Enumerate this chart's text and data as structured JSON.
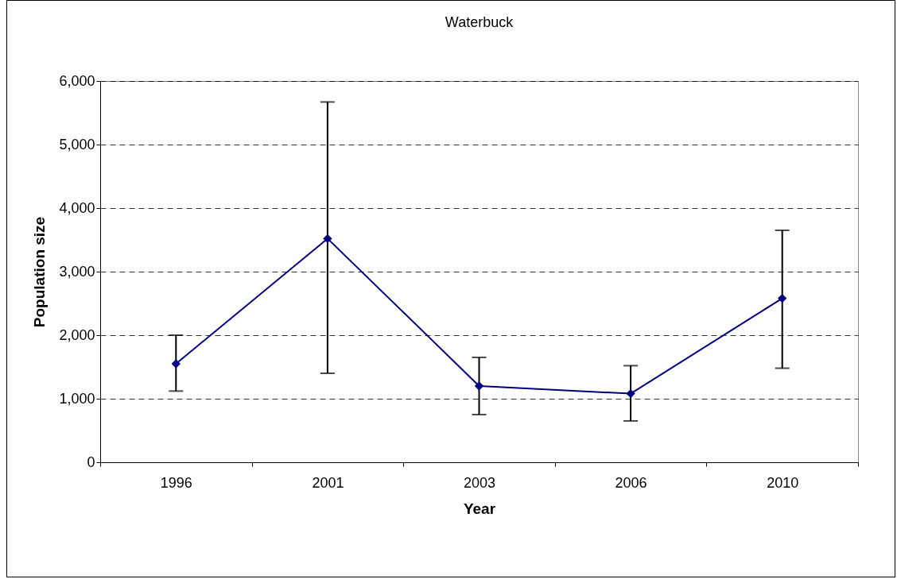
{
  "chart_data": {
    "type": "line",
    "title": "Waterbuck",
    "xlabel": "Year",
    "ylabel": "Population size",
    "categories": [
      "1996",
      "2001",
      "2003",
      "2006",
      "2010"
    ],
    "series": [
      {
        "color": "#000080",
        "values": [
          1550,
          3520,
          1200,
          1080,
          2580
        ],
        "errors": [
          [
            1120,
            2000
          ],
          [
            1400,
            5670
          ],
          [
            750,
            1650
          ],
          [
            650,
            1520
          ],
          [
            1480,
            3650
          ]
        ]
      }
    ],
    "ylim": [
      0,
      6000
    ],
    "yticks": [
      {
        "value": 0,
        "label": "0"
      },
      {
        "value": 1000,
        "label": "1,000"
      },
      {
        "value": 2000,
        "label": "2,000"
      },
      {
        "value": 3000,
        "label": "3,000"
      },
      {
        "value": 4000,
        "label": "4,000"
      },
      {
        "value": 5000,
        "label": "5,000"
      },
      {
        "value": 6000,
        "label": "6,000"
      }
    ],
    "grid": "y",
    "marker": "diamond",
    "line_style": "solid"
  }
}
